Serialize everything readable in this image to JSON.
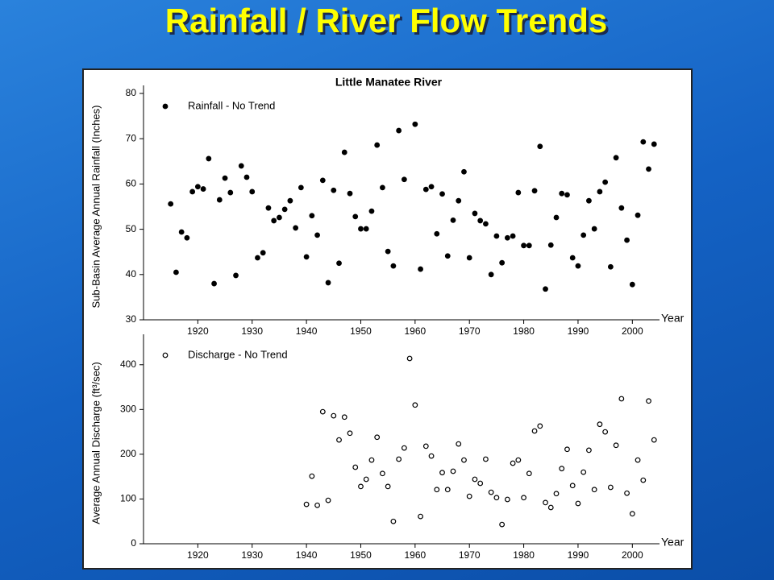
{
  "title": "Rainfall / River Flow Trends",
  "chart_data": [
    {
      "type": "scatter",
      "title": "Little Manatee River",
      "ylabel": "Sub-Basin Average Annual Rainfall (Inches)",
      "xlabel": "Year",
      "x": [
        1915,
        1916,
        1917,
        1918,
        1919,
        1920,
        1921,
        1922,
        1923,
        1924,
        1925,
        1926,
        1927,
        1928,
        1929,
        1930,
        1931,
        1932,
        1933,
        1934,
        1935,
        1936,
        1937,
        1938,
        1939,
        1940,
        1941,
        1942,
        1943,
        1944,
        1945,
        1946,
        1947,
        1948,
        1949,
        1950,
        1951,
        1952,
        1953,
        1954,
        1955,
        1956,
        1957,
        1958,
        1960,
        1961,
        1962,
        1963,
        1964,
        1965,
        1966,
        1967,
        1968,
        1969,
        1970,
        1971,
        1972,
        1973,
        1974,
        1975,
        1976,
        1977,
        1978,
        1979,
        1980,
        1981,
        1982,
        1983,
        1984,
        1985,
        1986,
        1987,
        1988,
        1989,
        1990,
        1991,
        1992,
        1993,
        1994,
        1995,
        1996,
        1997,
        1998,
        1999,
        2000,
        2001,
        2002,
        2003,
        2004
      ],
      "series": [
        {
          "name": "Rainfall - No Trend",
          "color": "#000000",
          "marker": "filled",
          "values": [
            55.6,
            40.5,
            49.4,
            48.1,
            58.3,
            59.4,
            58.9,
            65.6,
            38.0,
            56.5,
            61.3,
            58.1,
            39.8,
            64.0,
            61.5,
            58.3,
            43.7,
            44.8,
            54.7,
            51.9,
            52.6,
            54.4,
            56.3,
            50.3,
            59.2,
            43.9,
            53.0,
            48.7,
            60.8,
            38.2,
            58.6,
            42.5,
            67.0,
            57.9,
            52.8,
            50.1,
            50.1,
            54.0,
            68.6,
            59.2,
            45.1,
            41.9,
            71.8,
            61.0,
            73.2,
            41.2,
            58.8,
            59.4,
            49.0,
            57.8,
            44.1,
            52.0,
            56.3,
            62.7,
            43.7,
            53.5,
            51.9,
            51.2,
            40.0,
            48.5,
            42.6,
            48.1,
            48.5,
            58.1,
            46.4,
            46.4,
            58.5,
            68.3,
            36.8,
            46.5,
            52.6,
            57.9,
            57.6,
            43.7,
            41.9,
            48.7,
            56.3,
            50.1,
            58.3,
            60.4,
            41.7,
            65.8,
            54.7,
            47.6,
            37.8,
            53.1,
            69.3,
            63.3,
            68.8
          ]
        }
      ],
      "xlim": [
        1910,
        2005
      ],
      "xticks": [
        1920,
        1930,
        1940,
        1950,
        1960,
        1970,
        1980,
        1990,
        2000
      ],
      "ylim": [
        30,
        80
      ],
      "yticks": [
        30,
        40,
        50,
        60,
        70,
        80
      ],
      "legend": "top-left"
    },
    {
      "type": "scatter",
      "ylabel": "Average Annual Discharge (ft³/sec)",
      "xlabel": "Year",
      "x": [
        1940,
        1941,
        1942,
        1943,
        1944,
        1945,
        1946,
        1947,
        1948,
        1949,
        1950,
        1951,
        1952,
        1953,
        1954,
        1955,
        1956,
        1957,
        1958,
        1959,
        1960,
        1961,
        1962,
        1963,
        1964,
        1965,
        1966,
        1967,
        1968,
        1969,
        1970,
        1971,
        1972,
        1973,
        1974,
        1975,
        1976,
        1977,
        1978,
        1979,
        1980,
        1981,
        1982,
        1983,
        1984,
        1985,
        1986,
        1987,
        1988,
        1989,
        1990,
        1991,
        1992,
        1993,
        1994,
        1995,
        1996,
        1997,
        1998,
        1999,
        2000,
        2001,
        2002,
        2003,
        2004
      ],
      "series": [
        {
          "name": "Discharge - No Trend",
          "color": "#000000",
          "marker": "open",
          "values": [
            88,
            151,
            86,
            295,
            97,
            286,
            232,
            283,
            247,
            171,
            128,
            144,
            187,
            238,
            157,
            128,
            50,
            189,
            214,
            414,
            310,
            61,
            218,
            196,
            121,
            159,
            121,
            162,
            223,
            187,
            106,
            144,
            135,
            189,
            115,
            103,
            43,
            99,
            180,
            187,
            103,
            157,
            252,
            263,
            92,
            81,
            112,
            168,
            211,
            130,
            90,
            160,
            209,
            121,
            267,
            250,
            126,
            220,
            324,
            113,
            67,
            187,
            142,
            319,
            232
          ]
        }
      ],
      "xlim": [
        1910,
        2005
      ],
      "xticks": [
        1920,
        1930,
        1940,
        1950,
        1960,
        1970,
        1980,
        1990,
        2000
      ],
      "ylim": [
        0,
        450
      ],
      "yticks": [
        0,
        100,
        200,
        300,
        400
      ],
      "legend": "top-left"
    }
  ]
}
